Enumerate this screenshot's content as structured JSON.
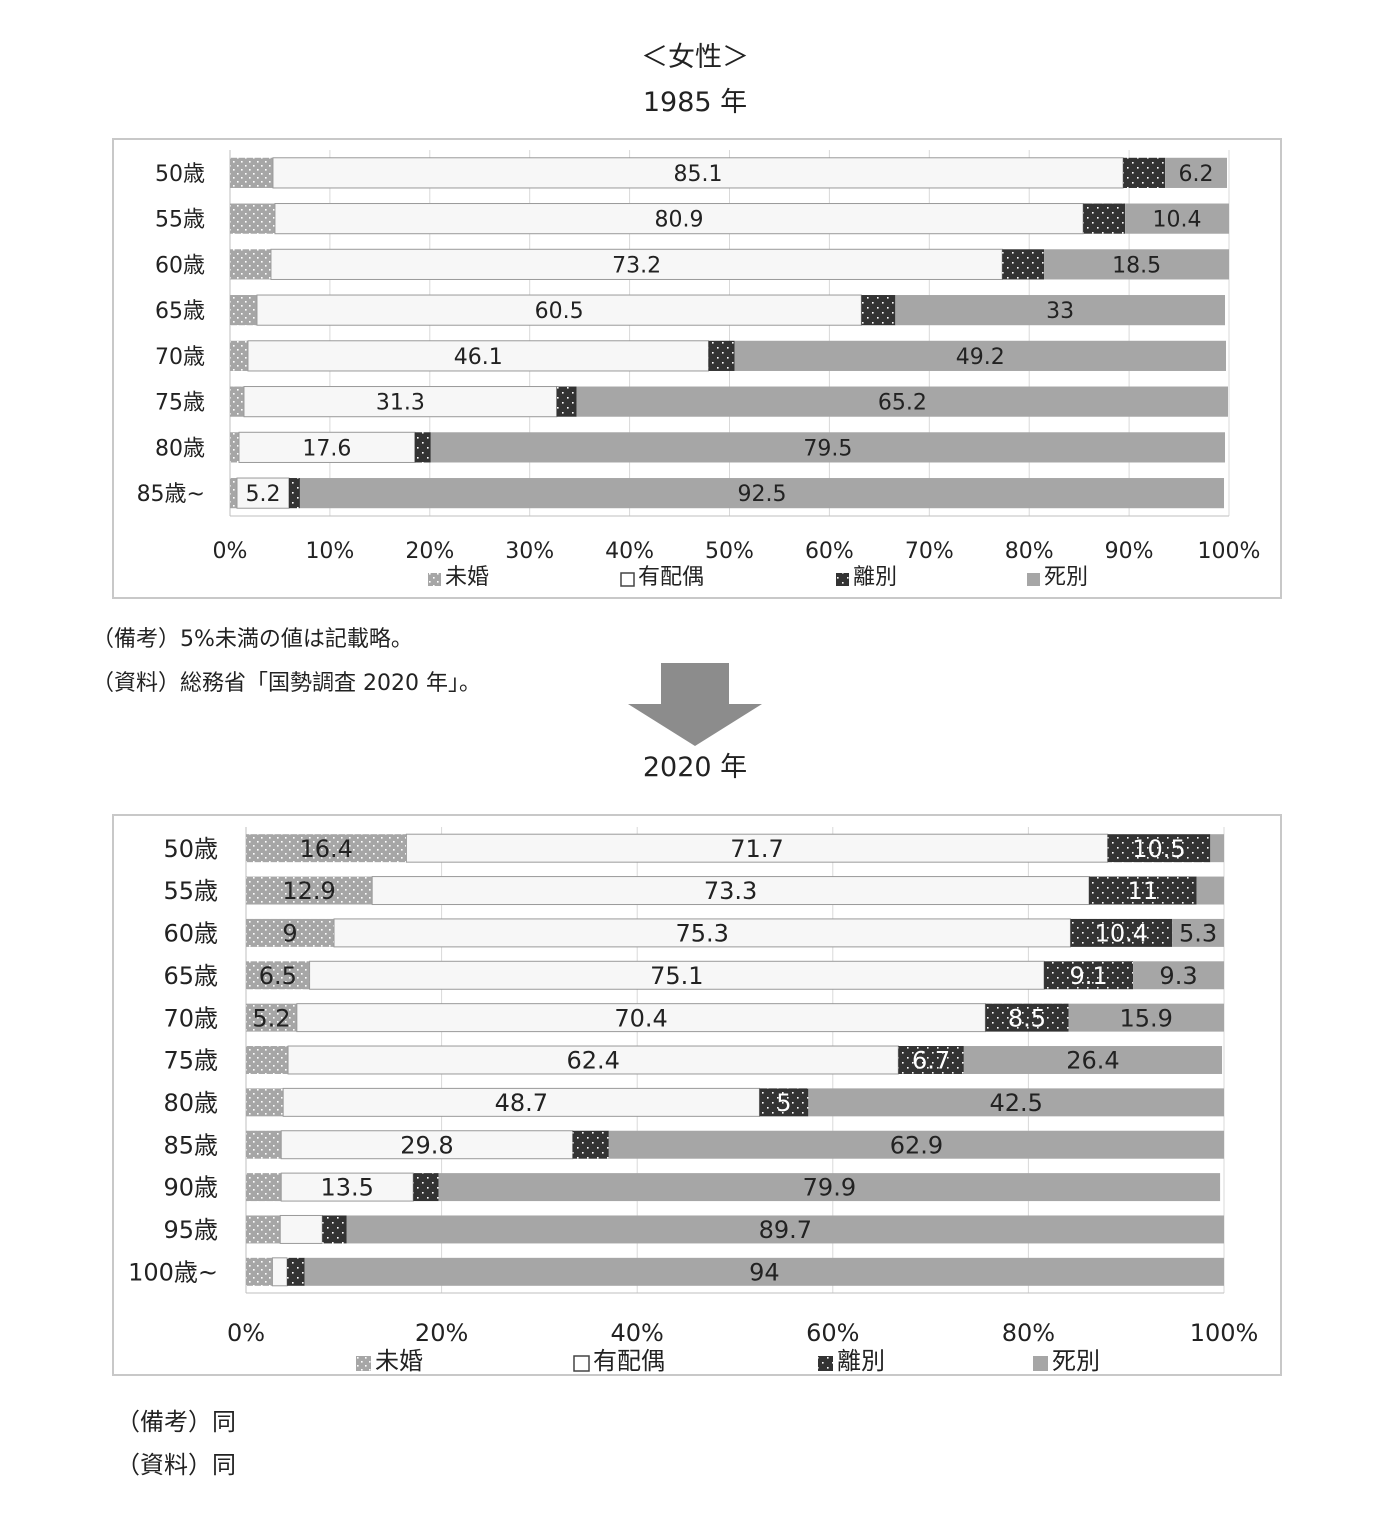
{
  "header": {
    "title": "＜女性＞",
    "year_top": "1985 年",
    "year_bottom": "2020 年"
  },
  "colors": {
    "unmarried": "#a6a6a6",
    "married": "#f7f7f7",
    "divorced": "#333333",
    "widowed": "#a6a6a6",
    "frame": "#c8c8c8",
    "arrow": "#8c8c8c"
  },
  "legend": [
    {
      "label": "未婚",
      "icon": "dotted-gray-square"
    },
    {
      "label": "有配偶",
      "icon": "white-square"
    },
    {
      "label": "離別",
      "icon": "dotted-black-square"
    },
    {
      "label": "死別",
      "icon": "gray-square"
    }
  ],
  "notes_top": [
    "（備考）5%未満の値は記載略。",
    "（資料）総務省「国勢調査 2020 年」。"
  ],
  "notes_bottom": [
    "（備考）同",
    "（資料）同"
  ],
  "chart_data": [
    {
      "type": "bar",
      "orientation": "horizontal",
      "stacked": "percent",
      "subtitle": "1985 年",
      "categories": [
        "50歳",
        "55歳",
        "60歳",
        "65歳",
        "70歳",
        "75歳",
        "80歳",
        "85歳~"
      ],
      "series": [
        {
          "name": "未婚",
          "values": [
            4.3,
            4.5,
            4.1,
            2.7,
            1.8,
            1.4,
            0.9,
            0.7
          ],
          "labels": [
            "",
            "",
            "",
            "",
            "",
            "",
            "",
            ""
          ]
        },
        {
          "name": "有配偶",
          "values": [
            85.1,
            80.9,
            73.2,
            60.5,
            46.1,
            31.3,
            17.6,
            5.2
          ],
          "labels": [
            "85.1",
            "80.9",
            "73.2",
            "60.5",
            "46.1",
            "31.3",
            "17.6",
            "5.2"
          ]
        },
        {
          "name": "離別",
          "values": [
            4.2,
            4.2,
            4.2,
            3.4,
            2.6,
            2.0,
            1.6,
            1.1
          ],
          "labels": [
            "",
            "",
            "",
            "",
            "",
            "",
            "",
            ""
          ]
        },
        {
          "name": "死別",
          "values": [
            6.2,
            10.4,
            18.5,
            33.0,
            49.2,
            65.2,
            79.5,
            92.5
          ],
          "labels": [
            "6.2",
            "10.4",
            "18.5",
            "33",
            "49.2",
            "65.2",
            "79.5",
            "92.5"
          ]
        }
      ],
      "xlim": [
        0,
        100
      ],
      "xticks": [
        "0%",
        "10%",
        "20%",
        "30%",
        "40%",
        "50%",
        "60%",
        "70%",
        "80%",
        "90%",
        "100%"
      ],
      "grid": true,
      "legend_position": "bottom"
    },
    {
      "type": "bar",
      "orientation": "horizontal",
      "stacked": "percent",
      "subtitle": "2020 年",
      "categories": [
        "50歳",
        "55歳",
        "60歳",
        "65歳",
        "70歳",
        "75歳",
        "80歳",
        "85歳",
        "90歳",
        "95歳",
        "100歳~"
      ],
      "series": [
        {
          "name": "未婚",
          "values": [
            16.4,
            12.9,
            9.0,
            6.5,
            5.2,
            4.3,
            3.8,
            3.6,
            3.6,
            3.5,
            2.7
          ],
          "labels": [
            "16.4",
            "12.9",
            "9",
            "6.5",
            "5.2",
            "",
            "",
            "",
            "",
            "",
            ""
          ]
        },
        {
          "name": "有配偶",
          "values": [
            71.7,
            73.3,
            75.3,
            75.1,
            70.4,
            62.4,
            48.7,
            29.8,
            13.5,
            4.3,
            1.5
          ],
          "labels": [
            "71.7",
            "73.3",
            "75.3",
            "75.1",
            "70.4",
            "62.4",
            "48.7",
            "29.8",
            "13.5",
            "",
            ""
          ]
        },
        {
          "name": "離別",
          "values": [
            10.5,
            11.0,
            10.4,
            9.1,
            8.5,
            6.7,
            5.0,
            3.7,
            2.6,
            2.5,
            1.8
          ],
          "labels": [
            "10.5",
            "11",
            "10.4",
            "9.1",
            "8.5",
            "6.7",
            "5",
            "",
            "",
            "",
            ""
          ]
        },
        {
          "name": "死別",
          "values": [
            1.4,
            2.8,
            5.3,
            9.3,
            15.9,
            26.4,
            42.5,
            62.9,
            79.9,
            89.7,
            94.0
          ],
          "labels": [
            "",
            "",
            "5.3",
            "9.3",
            "15.9",
            "26.4",
            "42.5",
            "62.9",
            "79.9",
            "89.7",
            "94"
          ]
        }
      ],
      "xlim": [
        0,
        100
      ],
      "xticks": [
        "0%",
        "20%",
        "40%",
        "60%",
        "80%",
        "100%"
      ],
      "grid": true,
      "legend_position": "bottom"
    }
  ]
}
